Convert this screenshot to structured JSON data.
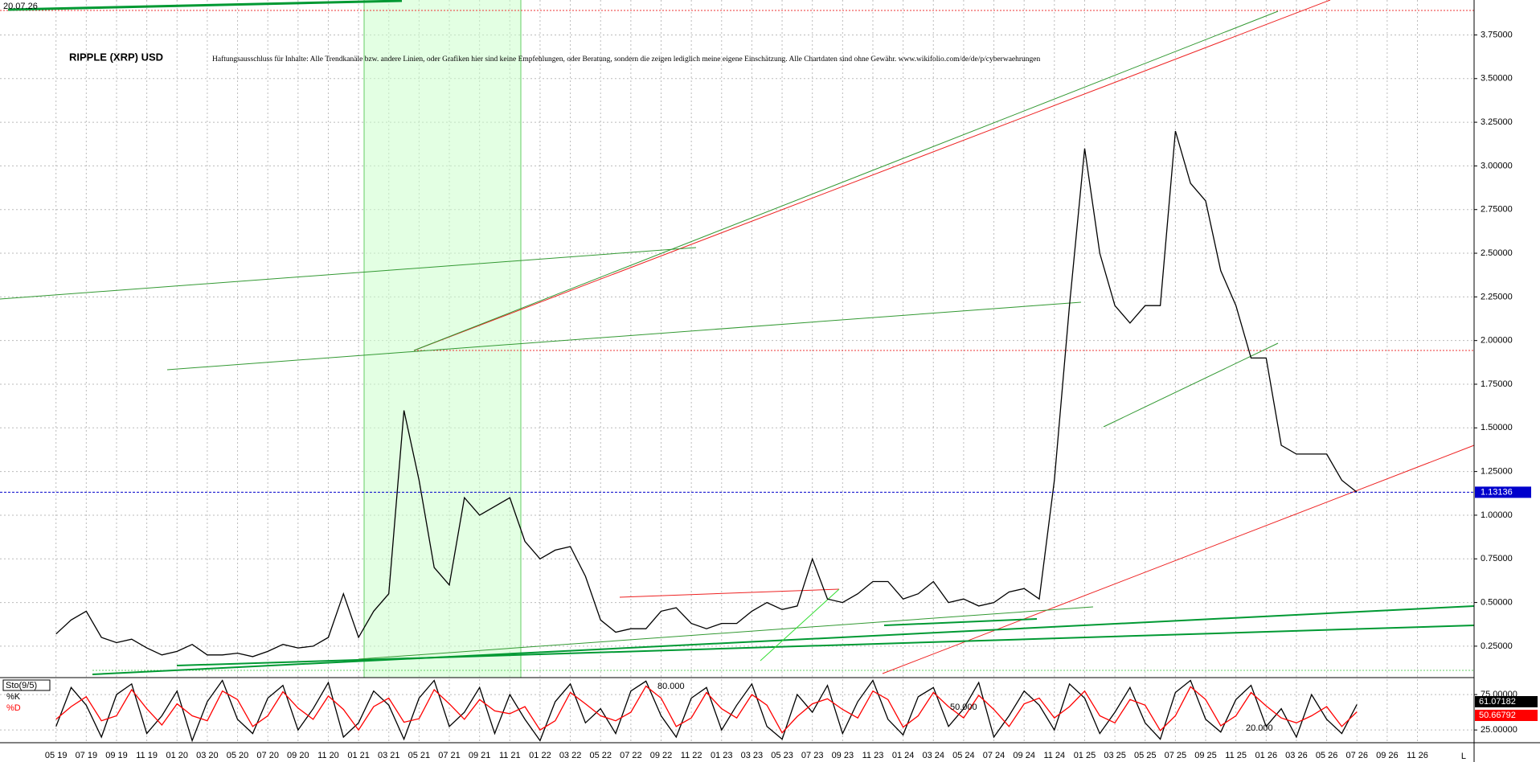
{
  "timestamp": "20.07.26",
  "axis_corner_label": "L",
  "chart_data": [
    {
      "type": "line",
      "title": "RIPPLE (XRP) USD",
      "subtitle": "Haftungsausschluss für Inhalte: Alle Trendkanäle bzw. andere Linien, oder Grafiken hier sind keine Empfehlungen, oder Beratung, sondern die zeigen lediglich meine eigene Einschätzung. Alle Chartdaten sind ohne Gewähr. www.wikifolio.com/de/de/p/cyberwaehrungen",
      "categories": [
        "05 19",
        null,
        "07 19",
        null,
        "09 19",
        null,
        "11 19",
        null,
        "01 20",
        null,
        "03 20",
        null,
        "05 20",
        null,
        "07 20",
        null,
        "09 20",
        null,
        "11 20",
        null,
        "01 21",
        null,
        "03 21",
        null,
        "05 21",
        null,
        "07 21",
        null,
        "09 21",
        null,
        "11 21",
        null,
        "01 22",
        null,
        "03 22",
        null,
        "05 22",
        null,
        "07 22",
        null,
        "09 22",
        null,
        "11 22",
        null,
        "01 23",
        null,
        "03 23",
        null,
        "05 23",
        null,
        "07 23",
        null,
        "09 23",
        null,
        "11 23",
        null,
        "01 24",
        null,
        "03 24",
        null,
        "05 24",
        null,
        "07 24",
        null,
        "09 24",
        null,
        "11 24",
        null,
        "01 25",
        null,
        "03 25",
        null,
        "05 25",
        null,
        "07 25",
        null,
        "09 25",
        null,
        "11 25",
        null,
        "01 26",
        null,
        "03 26",
        null,
        "05 26",
        null,
        "07 26",
        null,
        "09 26",
        null,
        "11 26"
      ],
      "color": "#000000",
      "values": [
        0.32,
        0.4,
        0.45,
        0.3,
        0.27,
        0.29,
        0.24,
        0.2,
        0.22,
        0.26,
        0.2,
        0.2,
        0.21,
        0.19,
        0.22,
        0.26,
        0.24,
        0.25,
        0.3,
        0.55,
        0.3,
        0.45,
        0.55,
        1.6,
        1.2,
        0.7,
        0.6,
        1.1,
        1.0,
        1.05,
        1.1,
        0.85,
        0.75,
        0.8,
        0.82,
        0.65,
        0.4,
        0.33,
        0.35,
        0.35,
        0.45,
        0.47,
        0.38,
        0.35,
        0.38,
        0.38,
        0.45,
        0.5,
        0.46,
        0.48,
        0.75,
        0.52,
        0.5,
        0.55,
        0.62,
        0.62,
        0.52,
        0.55,
        0.62,
        0.5,
        0.52,
        0.48,
        0.5,
        0.56,
        0.58,
        0.52,
        1.2,
        2.2,
        3.1,
        2.5,
        2.2,
        2.1,
        2.2,
        2.2,
        3.2,
        2.9,
        2.8,
        2.4,
        2.2,
        1.9,
        1.9,
        1.4,
        1.35,
        1.35,
        1.35,
        1.2,
        1.13136,
        null,
        null,
        null,
        null
      ],
      "last_value": 1.13136,
      "last_value_color": "#0000cc",
      "ylim": [
        0.07,
        3.95
      ],
      "yticks": [
        {
          "value": 0.25,
          "label": "0.25000"
        },
        {
          "value": 0.5,
          "label": "0.50000"
        },
        {
          "value": 0.75,
          "label": "0.75000"
        },
        {
          "value": 1,
          "label": "1.00000"
        },
        {
          "value": 1.25,
          "label": "1.25000"
        },
        {
          "value": 1.5,
          "label": "1.50000"
        },
        {
          "value": 1.75,
          "label": "1.75000"
        },
        {
          "value": 2,
          "label": "2.00000"
        },
        {
          "value": 2.25,
          "label": "2.25000"
        },
        {
          "value": 2.5,
          "label": "2.50000"
        },
        {
          "value": 2.75,
          "label": "2.75000"
        },
        {
          "value": 3,
          "label": "3.00000"
        },
        {
          "value": 3.25,
          "label": "3.25000"
        },
        {
          "value": 3.5,
          "label": "3.50000"
        },
        {
          "value": 3.75,
          "label": "3.75000"
        }
      ],
      "grid": true
    },
    {
      "type": "line",
      "title": "Sto(9/5)",
      "series": [
        {
          "name": "%K",
          "color": "#000000",
          "values": [
            30,
            85,
            60,
            15,
            75,
            90,
            20,
            45,
            80,
            10,
            65,
            95,
            40,
            20,
            70,
            88,
            25,
            55,
            92,
            15,
            35,
            80,
            60,
            12,
            70,
            95,
            30,
            50,
            85,
            20,
            75,
            40,
            10,
            65,
            90,
            35,
            55,
            20,
            80,
            94,
            45,
            15,
            70,
            85,
            25,
            60,
            90,
            30,
            12,
            75,
            50,
            88,
            20,
            65,
            95,
            40,
            18,
            72,
            85,
            30,
            55,
            92,
            15,
            45,
            80,
            60,
            25,
            90,
            70,
            20,
            50,
            85,
            35,
            12,
            78,
            95,
            40,
            22,
            68,
            88,
            30,
            55,
            15,
            75,
            40,
            20,
            61.07182,
            null,
            null,
            null,
            null
          ]
        },
        {
          "name": "%D",
          "color": "#ff0000",
          "values": [
            40,
            58,
            72,
            38,
            45,
            82,
            55,
            32,
            62,
            45,
            38,
            80,
            68,
            30,
            45,
            79,
            56,
            40,
            73,
            54,
            25,
            58,
            70,
            36,
            41,
            82,
            62,
            40,
            68,
            52,
            48,
            58,
            25,
            38,
            78,
            62,
            45,
            38,
            50,
            87,
            70,
            30,
            42,
            78,
            55,
            42,
            75,
            60,
            21,
            44,
            62,
            69,
            54,
            42,
            80,
            68,
            29,
            45,
            78,
            58,
            42,
            74,
            54,
            30,
            62,
            70,
            42,
            58,
            80,
            45,
            35,
            68,
            60,
            24,
            45,
            86,
            68,
            31,
            45,
            78,
            59,
            42,
            35,
            45,
            58,
            30,
            50.66792,
            null,
            null,
            null,
            null
          ]
        }
      ],
      "last_values": [
        61.07182,
        50.66792
      ],
      "annotations": [
        "80.000",
        "50.000",
        "20.000"
      ],
      "ylim": [
        7,
        99
      ],
      "yticks": [
        {
          "value": 25,
          "label": "25.00000"
        },
        {
          "value": 75,
          "label": "75.00000"
        }
      ],
      "grid": true
    }
  ]
}
